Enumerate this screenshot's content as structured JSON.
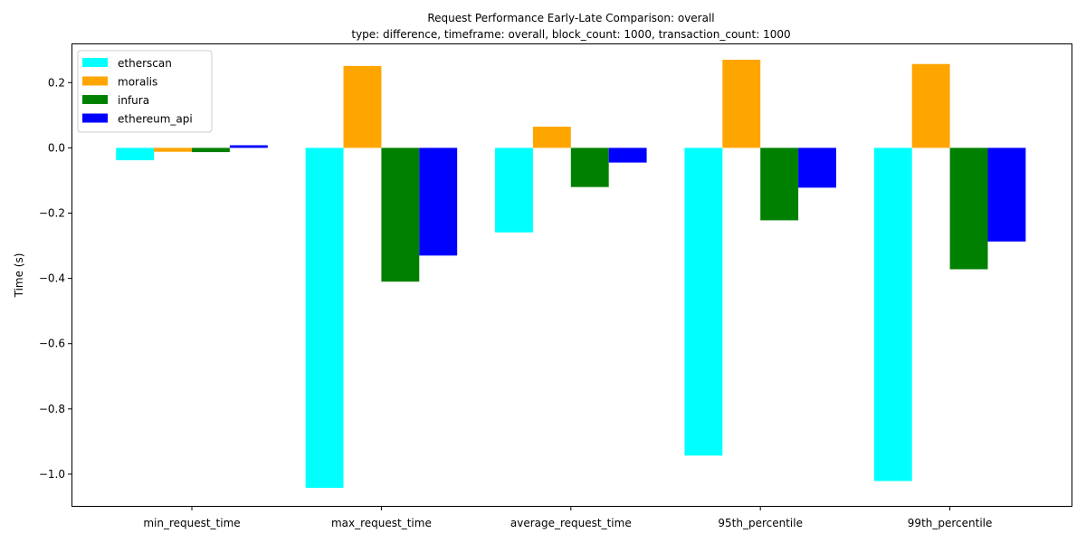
{
  "chart_data": {
    "type": "bar",
    "title": "Request Performance Early-Late Comparison: overall",
    "subtitle": "type: difference, timeframe: overall, block_count: 1000, transaction_count: 1000",
    "xlabel": "",
    "ylabel": "Time (s)",
    "categories": [
      "min_request_time",
      "max_request_time",
      "average_request_time",
      "95th_percentile",
      "99th_percentile"
    ],
    "series": [
      {
        "name": "etherscan",
        "color": "#00ffff",
        "values": [
          -0.038,
          -1.042,
          -0.259,
          -0.943,
          -1.021
        ]
      },
      {
        "name": "moralis",
        "color": "#ffa500",
        "values": [
          -0.012,
          0.251,
          0.065,
          0.27,
          0.257
        ]
      },
      {
        "name": "infura",
        "color": "#008000",
        "values": [
          -0.013,
          -0.41,
          -0.12,
          -0.222,
          -0.372
        ]
      },
      {
        "name": "ethereum_api",
        "color": "#0000ff",
        "values": [
          0.008,
          -0.33,
          -0.045,
          -0.122,
          -0.287
        ]
      }
    ],
    "ylim": [
      -1.1,
      0.32
    ],
    "yticks": [
      0.2,
      0.0,
      -0.2,
      -0.4,
      -0.6,
      -0.8,
      -1.0
    ],
    "ytick_labels": [
      "0.2",
      "0.0",
      "−0.2",
      "−0.4",
      "−0.6",
      "−0.8",
      "−1.0"
    ],
    "grid": false,
    "legend_position": "top-left"
  }
}
